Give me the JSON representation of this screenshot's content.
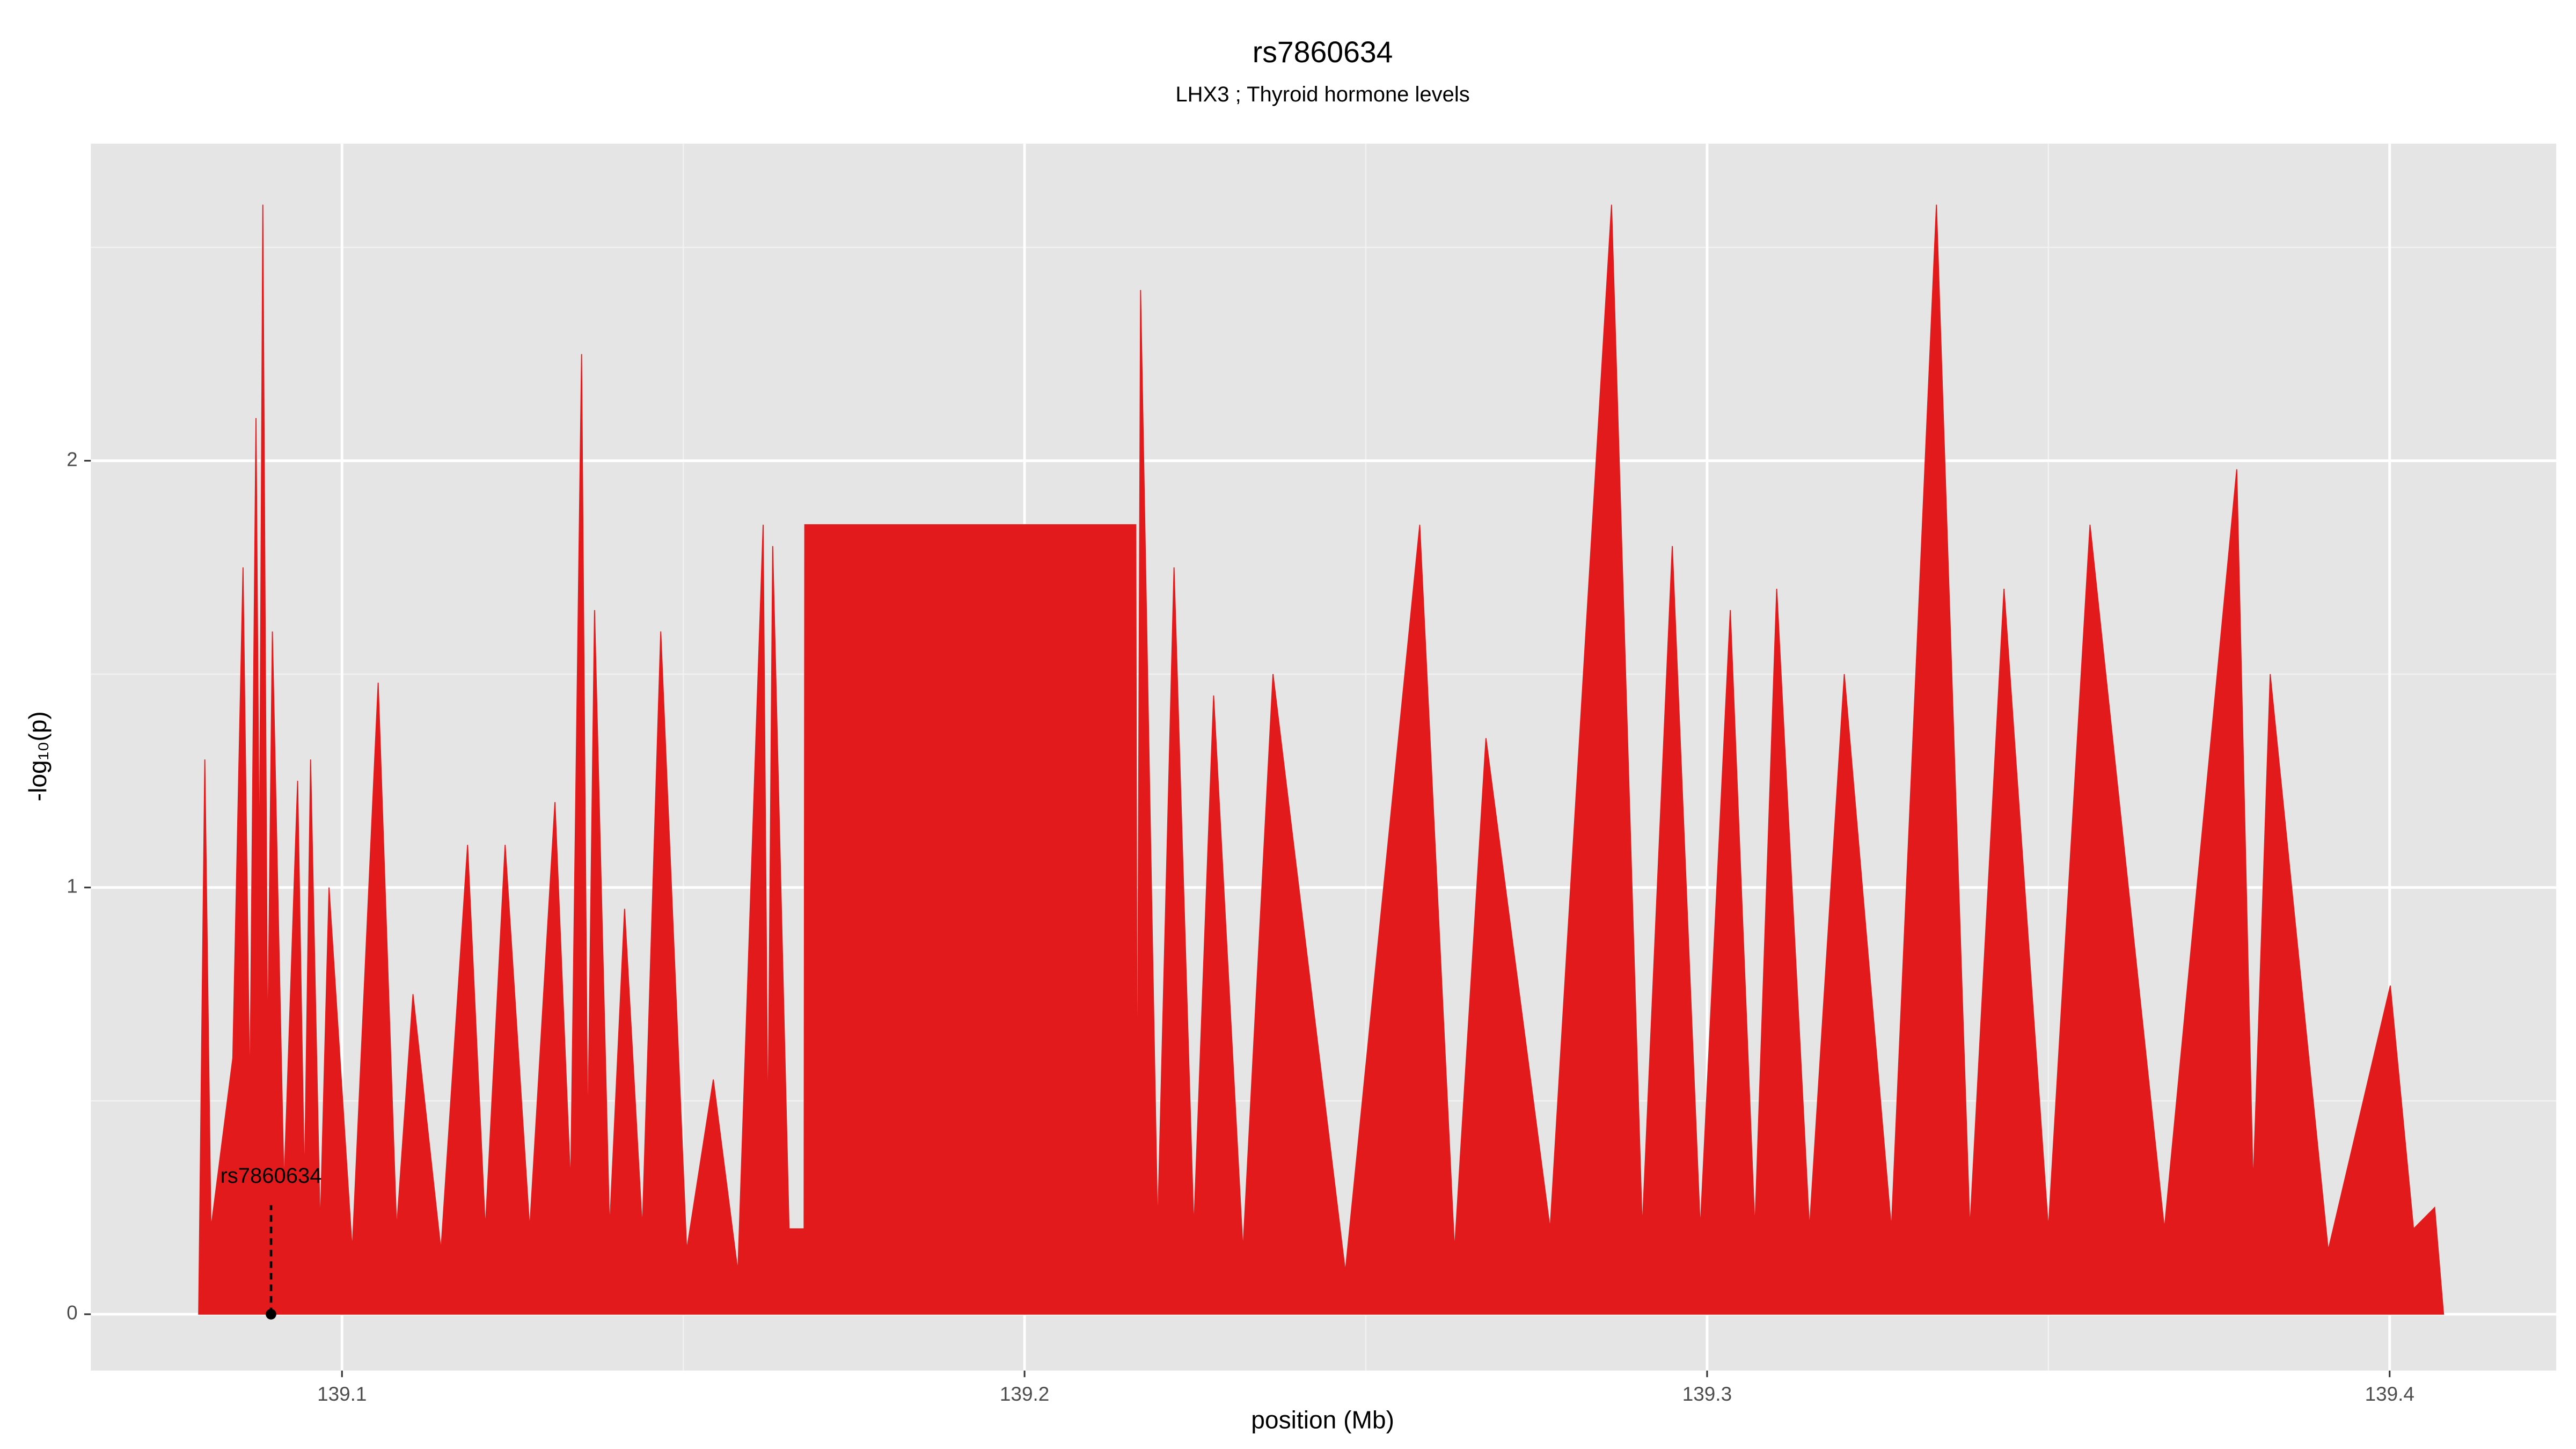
{
  "chart_data": {
    "type": "area",
    "title": "rs7860634",
    "subtitle": "LHX3  ; Thyroid hormone levels",
    "x_label": "position (Mb)",
    "y_label": "-log₁₀(p)",
    "color": "#e31a1c",
    "grid": true,
    "xlim": [
      139.0632,
      139.4244
    ],
    "ylim": [
      -0.132,
      2.743
    ],
    "xticks": [
      139.1,
      139.2,
      139.3,
      139.4
    ],
    "yticks": [
      0,
      1,
      2
    ],
    "x_minor_grid": [
      139.15,
      139.25,
      139.35
    ],
    "y_minor_grid": [
      0.5,
      1.5,
      2.5
    ],
    "annotation": {
      "label": "rs7860634",
      "x": 139.0896,
      "y": 0
    },
    "x": [
      139.079,
      139.0799,
      139.0808,
      139.084,
      139.0855,
      139.0865,
      139.0874,
      139.0879,
      139.0884,
      139.0891,
      139.0898,
      139.0915,
      139.0935,
      139.0945,
      139.0954,
      139.0968,
      139.0981,
      139.1015,
      139.1053,
      139.108,
      139.1104,
      139.1145,
      139.1184,
      139.121,
      139.1239,
      139.1275,
      139.1312,
      139.1335,
      139.1351,
      139.136,
      139.137,
      139.1392,
      139.1414,
      139.144,
      139.1467,
      139.1505,
      139.1544,
      139.158,
      139.1617,
      139.1624,
      139.1631,
      139.1655,
      139.1677,
      139.1678,
      139.2163,
      139.2165,
      139.217,
      139.2195,
      139.2219,
      139.2248,
      139.2277,
      139.232,
      139.2364,
      139.247,
      139.2579,
      139.263,
      139.2676,
      139.277,
      139.286,
      139.2905,
      139.2949,
      139.299,
      139.3034,
      139.307,
      139.3102,
      139.315,
      139.3201,
      139.327,
      139.3336,
      139.3385,
      139.3435,
      139.35,
      139.3561,
      139.367,
      139.3776,
      139.38,
      139.3825,
      139.391,
      139.4001,
      139.4035,
      139.4066,
      139.4079
    ],
    "values": [
      0,
      1.3,
      0.2,
      0.6,
      1.75,
      0.5,
      2.1,
      1.0,
      2.6,
      0.6,
      1.6,
      0.3,
      1.25,
      0.3,
      1.3,
      0.2,
      1.0,
      0.15,
      1.48,
      0.2,
      0.75,
      0.15,
      1.1,
      0.2,
      1.1,
      0.2,
      1.2,
      0.3,
      2.25,
      0.4,
      1.65,
      0.2,
      0.95,
      0.2,
      1.6,
      0.15,
      0.55,
      0.1,
      1.85,
      0.4,
      1.8,
      0.2,
      0.2,
      1.85,
      1.85,
      0.3,
      2.4,
      0.2,
      1.75,
      0.2,
      1.45,
      0.15,
      1.5,
      0.1,
      1.85,
      0.15,
      1.35,
      0.2,
      2.6,
      0.2,
      1.8,
      0.2,
      1.65,
      0.2,
      1.7,
      0.2,
      1.5,
      0.2,
      2.6,
      0.2,
      1.7,
      0.2,
      1.85,
      0.2,
      1.98,
      0.3,
      1.5,
      0.15,
      0.77,
      0.2,
      0.25,
      0
    ]
  }
}
